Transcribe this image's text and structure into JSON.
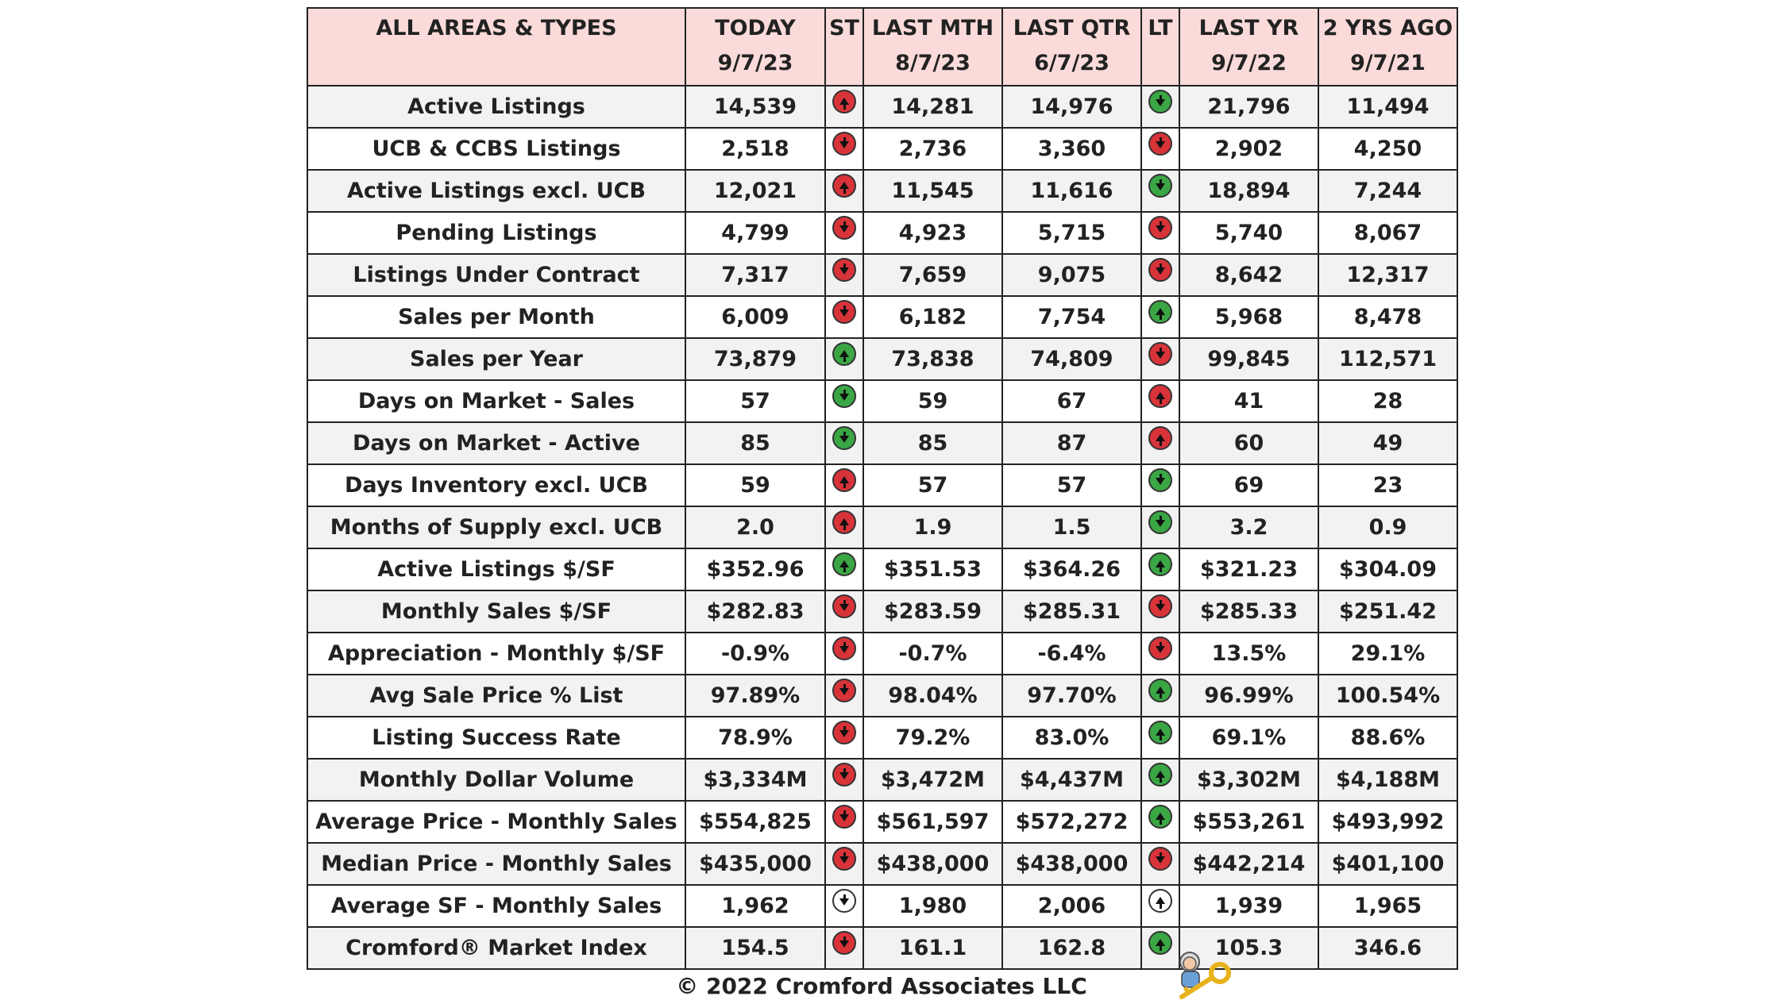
{
  "header": {
    "label": "ALL AREAS & TYPES",
    "today": [
      "TODAY",
      "9/7/23"
    ],
    "st": "ST",
    "last_mth": [
      "LAST MTH",
      "8/7/23"
    ],
    "last_qtr": [
      "LAST QTR",
      "6/7/23"
    ],
    "lt": "LT",
    "last_yr": [
      "LAST YR",
      "9/7/22"
    ],
    "two_yrs": [
      "2 YRS AGO",
      "9/7/21"
    ]
  },
  "rows": [
    {
      "label": "Active Listings",
      "today": "14,539",
      "st": {
        "dir": "up",
        "color": "red"
      },
      "last_mth": "14,281",
      "last_qtr": "14,976",
      "lt": {
        "dir": "down",
        "color": "green"
      },
      "last_yr": "21,796",
      "two_yrs": "11,494"
    },
    {
      "label": "UCB & CCBS Listings",
      "today": "2,518",
      "st": {
        "dir": "down",
        "color": "red"
      },
      "last_mth": "2,736",
      "last_qtr": "3,360",
      "lt": {
        "dir": "down",
        "color": "red"
      },
      "last_yr": "2,902",
      "two_yrs": "4,250"
    },
    {
      "label": "Active Listings excl. UCB",
      "today": "12,021",
      "st": {
        "dir": "up",
        "color": "red"
      },
      "last_mth": "11,545",
      "last_qtr": "11,616",
      "lt": {
        "dir": "down",
        "color": "green"
      },
      "last_yr": "18,894",
      "two_yrs": "7,244"
    },
    {
      "label": "Pending Listings",
      "today": "4,799",
      "st": {
        "dir": "down",
        "color": "red"
      },
      "last_mth": "4,923",
      "last_qtr": "5,715",
      "lt": {
        "dir": "down",
        "color": "red"
      },
      "last_yr": "5,740",
      "two_yrs": "8,067"
    },
    {
      "label": "Listings Under Contract",
      "today": "7,317",
      "st": {
        "dir": "down",
        "color": "red"
      },
      "last_mth": "7,659",
      "last_qtr": "9,075",
      "lt": {
        "dir": "down",
        "color": "red"
      },
      "last_yr": "8,642",
      "two_yrs": "12,317"
    },
    {
      "label": "Sales per Month",
      "today": "6,009",
      "st": {
        "dir": "down",
        "color": "red"
      },
      "last_mth": "6,182",
      "last_qtr": "7,754",
      "lt": {
        "dir": "up",
        "color": "green"
      },
      "last_yr": "5,968",
      "two_yrs": "8,478"
    },
    {
      "label": "Sales per Year",
      "today": "73,879",
      "st": {
        "dir": "up",
        "color": "green"
      },
      "last_mth": "73,838",
      "last_qtr": "74,809",
      "lt": {
        "dir": "down",
        "color": "red"
      },
      "last_yr": "99,845",
      "two_yrs": "112,571"
    },
    {
      "label": "Days on Market - Sales",
      "today": "57",
      "st": {
        "dir": "down",
        "color": "green"
      },
      "last_mth": "59",
      "last_qtr": "67",
      "lt": {
        "dir": "up",
        "color": "red"
      },
      "last_yr": "41",
      "two_yrs": "28"
    },
    {
      "label": "Days on Market - Active",
      "today": "85",
      "st": {
        "dir": "down",
        "color": "green"
      },
      "last_mth": "85",
      "last_qtr": "87",
      "lt": {
        "dir": "up",
        "color": "red"
      },
      "last_yr": "60",
      "two_yrs": "49"
    },
    {
      "label": "Days Inventory excl. UCB",
      "today": "59",
      "st": {
        "dir": "up",
        "color": "red"
      },
      "last_mth": "57",
      "last_qtr": "57",
      "lt": {
        "dir": "down",
        "color": "green"
      },
      "last_yr": "69",
      "two_yrs": "23"
    },
    {
      "label": "Months of Supply excl. UCB",
      "today": "2.0",
      "st": {
        "dir": "up",
        "color": "red"
      },
      "last_mth": "1.9",
      "last_qtr": "1.5",
      "lt": {
        "dir": "down",
        "color": "green"
      },
      "last_yr": "3.2",
      "two_yrs": "0.9"
    },
    {
      "label": "Active Listings $/SF",
      "today": "$352.96",
      "st": {
        "dir": "up",
        "color": "green"
      },
      "last_mth": "$351.53",
      "last_qtr": "$364.26",
      "lt": {
        "dir": "up",
        "color": "green"
      },
      "last_yr": "$321.23",
      "two_yrs": "$304.09"
    },
    {
      "label": "Monthly Sales $/SF",
      "today": "$282.83",
      "st": {
        "dir": "down",
        "color": "red"
      },
      "last_mth": "$283.59",
      "last_qtr": "$285.31",
      "lt": {
        "dir": "down",
        "color": "red"
      },
      "last_yr": "$285.33",
      "two_yrs": "$251.42"
    },
    {
      "label": "Appreciation - Monthly $/SF",
      "today": "-0.9%",
      "st": {
        "dir": "down",
        "color": "red"
      },
      "last_mth": "-0.7%",
      "last_qtr": "-6.4%",
      "lt": {
        "dir": "down",
        "color": "red"
      },
      "last_yr": "13.5%",
      "two_yrs": "29.1%"
    },
    {
      "label": "Avg Sale Price % List",
      "today": "97.89%",
      "st": {
        "dir": "down",
        "color": "red"
      },
      "last_mth": "98.04%",
      "last_qtr": "97.70%",
      "lt": {
        "dir": "up",
        "color": "green"
      },
      "last_yr": "96.99%",
      "two_yrs": "100.54%"
    },
    {
      "label": "Listing Success Rate",
      "today": "78.9%",
      "st": {
        "dir": "down",
        "color": "red"
      },
      "last_mth": "79.2%",
      "last_qtr": "83.0%",
      "lt": {
        "dir": "up",
        "color": "green"
      },
      "last_yr": "69.1%",
      "two_yrs": "88.6%"
    },
    {
      "label": "Monthly Dollar Volume",
      "today": "$3,334M",
      "st": {
        "dir": "down",
        "color": "red"
      },
      "last_mth": "$3,472M",
      "last_qtr": "$4,437M",
      "lt": {
        "dir": "up",
        "color": "green"
      },
      "last_yr": "$3,302M",
      "two_yrs": "$4,188M"
    },
    {
      "label": "Average Price - Monthly Sales",
      "today": "$554,825",
      "st": {
        "dir": "down",
        "color": "red"
      },
      "last_mth": "$561,597",
      "last_qtr": "$572,272",
      "lt": {
        "dir": "up",
        "color": "green"
      },
      "last_yr": "$553,261",
      "two_yrs": "$493,992"
    },
    {
      "label": "Median Price - Monthly Sales",
      "today": "$435,000",
      "st": {
        "dir": "down",
        "color": "red"
      },
      "last_mth": "$438,000",
      "last_qtr": "$438,000",
      "lt": {
        "dir": "down",
        "color": "red"
      },
      "last_yr": "$442,214",
      "two_yrs": "$401,100"
    },
    {
      "label": "Average SF - Monthly Sales",
      "today": "1,962",
      "st": {
        "dir": "down",
        "color": "white"
      },
      "last_mth": "1,980",
      "last_qtr": "2,006",
      "lt": {
        "dir": "up",
        "color": "white"
      },
      "last_yr": "1,939",
      "two_yrs": "1,965"
    },
    {
      "label": "Cromford® Market Index",
      "today": "154.5",
      "st": {
        "dir": "down",
        "color": "red"
      },
      "last_mth": "161.1",
      "last_qtr": "162.8",
      "lt": {
        "dir": "up",
        "color": "green"
      },
      "last_yr": "105.3",
      "two_yrs": "346.6"
    }
  ],
  "footer": "© 2022 Cromford Associates LLC",
  "colors": {
    "header_bg": "#fadbd9",
    "red_indicator": "#d9333a",
    "green_indicator": "#3aa644",
    "row_alt": "#f2f2f2"
  },
  "icons": {
    "mascot": "mascot-with-key-icon"
  }
}
